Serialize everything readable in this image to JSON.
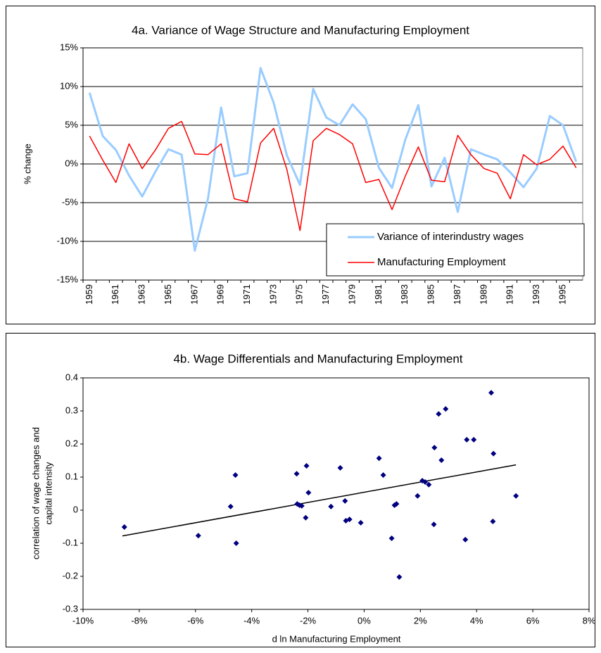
{
  "chart_data": [
    {
      "type": "line",
      "title": "4a. Variance of Wage Structure and Manufacturing Employment",
      "y_label": "% change",
      "categories": [
        "1959",
        null,
        "1961",
        null,
        "1963",
        null,
        "1965",
        null,
        "1967",
        null,
        "1969",
        null,
        "1971",
        null,
        "1973",
        null,
        "1975",
        null,
        "1977",
        null,
        "1979",
        null,
        "1981",
        null,
        "1983",
        null,
        "1985",
        null,
        "1987",
        null,
        "1989",
        null,
        "1991",
        null,
        "1993",
        null,
        "1995",
        null
      ],
      "series": [
        {
          "name": "Variance of interindustry wages",
          "color": "#99ccff",
          "width": 3,
          "values": [
            9.2,
            3.6,
            1.8,
            -1.5,
            -4.2,
            -1,
            1.9,
            1.2,
            -11.2,
            -4.5,
            7.3,
            -1.6,
            -1.2,
            12.4,
            7.9,
            1.1,
            -2.7,
            9.7,
            6.0,
            5.0,
            7.7,
            5.8,
            -0.5,
            -3.1,
            3.1,
            7.6,
            -2.9,
            0.8,
            -6.2,
            1.9,
            1.2,
            0.6,
            -1.1,
            -3.0,
            -0.6,
            6.2,
            5.0,
            0.3
          ]
        },
        {
          "name": "Manufacturing Employment",
          "color": "#ff0000",
          "width": 1.5,
          "values": [
            3.6,
            0.5,
            -2.4,
            2.6,
            -0.6,
            1.8,
            4.6,
            5.5,
            1.3,
            1.2,
            2.6,
            -4.5,
            -4.9,
            2.7,
            4.6,
            -0.7,
            -8.6,
            3.0,
            4.6,
            3.8,
            2.6,
            -2.4,
            -2.0,
            -5.9,
            -1.6,
            2.2,
            -2.1,
            -2.3,
            3.7,
            1.2,
            -0.6,
            -1.2,
            -4.5,
            1.2,
            -0.1,
            0.6,
            2.3,
            -0.5
          ]
        }
      ],
      "ylim": [
        -15,
        15
      ],
      "yticks": [
        {
          "value": -15,
          "label": "-15%"
        },
        {
          "value": -10,
          "label": "-10%"
        },
        {
          "value": -5,
          "label": "-5%"
        },
        {
          "value": 0,
          "label": "0%"
        },
        {
          "value": 5,
          "label": "5%"
        },
        {
          "value": 10,
          "label": "10%"
        },
        {
          "value": 15,
          "label": "15%"
        }
      ],
      "grid": true,
      "legend": "lower right"
    },
    {
      "type": "scatter",
      "title": "4b. Wage Differentials and Manufacturing Employment",
      "x_label": "d ln Manufacturing Employment",
      "y_label": [
        "correlation of wage changes and",
        "capital intensity"
      ],
      "color": "#000080",
      "x": [
        -8.53,
        -5.9,
        -4.75,
        -4.58,
        -4.55,
        -2.4,
        -2.38,
        -2.3,
        -2.22,
        -2.08,
        -2.05,
        -1.98,
        -1.18,
        -0.85,
        -0.68,
        -0.65,
        -0.52,
        -0.12,
        0.53,
        0.68,
        0.98,
        1.08,
        1.15,
        1.25,
        1.9,
        2.07,
        2.17,
        2.3,
        2.48,
        2.5,
        2.65,
        2.75,
        2.9,
        3.65,
        3.6,
        3.9,
        4.52,
        4.6,
        4.58,
        5.4
      ],
      "values": [
        -0.051,
        -0.077,
        0.011,
        0.106,
        -0.1,
        0.11,
        0.019,
        0.015,
        0.013,
        -0.023,
        0.134,
        0.053,
        0.011,
        0.128,
        0.028,
        -0.032,
        -0.028,
        -0.038,
        0.157,
        0.106,
        -0.085,
        0.015,
        0.019,
        -0.202,
        0.043,
        0.089,
        0.085,
        0.077,
        -0.043,
        0.189,
        0.291,
        0.151,
        0.306,
        0.213,
        -0.089,
        0.213,
        0.355,
        0.171,
        -0.034,
        0.043
      ],
      "trendline": {
        "x": [
          -8.6,
          5.4
        ],
        "values": [
          -0.078,
          0.137
        ]
      },
      "xlim": [
        -10,
        8
      ],
      "xticks": [
        {
          "value": -10,
          "label": "-10%"
        },
        {
          "value": -8,
          "label": "-8%"
        },
        {
          "value": -6,
          "label": "-6%"
        },
        {
          "value": -4,
          "label": "-4%"
        },
        {
          "value": -2,
          "label": "-2%"
        },
        {
          "value": 0,
          "label": "0%"
        },
        {
          "value": 2,
          "label": "2%"
        },
        {
          "value": 4,
          "label": "4%"
        },
        {
          "value": 6,
          "label": "6%"
        },
        {
          "value": 8,
          "label": "8%"
        }
      ],
      "ylim": [
        -0.3,
        0.4
      ],
      "yticks": [
        -0.3,
        -0.2,
        -0.1,
        0,
        0.1,
        0.2,
        0.3,
        0.4
      ]
    }
  ]
}
